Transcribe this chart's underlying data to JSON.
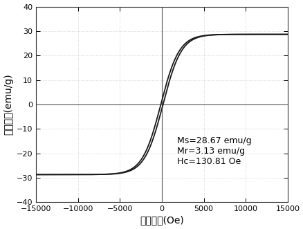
{
  "title": "",
  "xlabel": "磁场强度(Oe)",
  "ylabel": "磁化强度(emu/g)",
  "xlim": [
    -15000,
    15000
  ],
  "ylim": [
    -40,
    40
  ],
  "xticks": [
    -15000,
    -10000,
    -5000,
    0,
    5000,
    10000,
    15000
  ],
  "yticks": [
    -40,
    -30,
    -20,
    -10,
    0,
    10,
    20,
    30,
    40
  ],
  "Ms": 28.67,
  "Mr": 3.13,
  "Hc": 130.81,
  "annotation": "Ms=28.67 emu/g\nMr=3.13 emu/g\nHc=130.81 Oe",
  "curve_color": "#1a1a1a",
  "background_color": "#ffffff",
  "grid_color": "#c0c0c0",
  "spine_color": "#333333",
  "axline_color": "#555555",
  "alpha_shape": 2200.0,
  "font_size_labels": 10,
  "font_size_ticks": 8,
  "font_size_annotation": 9
}
